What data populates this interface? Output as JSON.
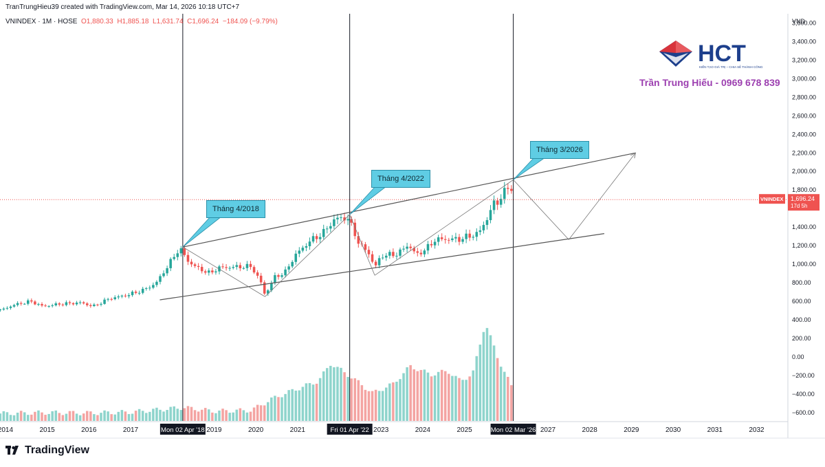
{
  "header": {
    "created_by": "TranTrungHieu39 created with TradingView.com, Mar 14, 2026 10:18 UTC+7"
  },
  "symbol": {
    "name": "VNINDEX · 1M · HOSE",
    "open": "O1,880.33",
    "high": "H1,885.18",
    "low": "L1,631.74",
    "close": "C1,696.24",
    "change": "−184.09 (−9.79%)"
  },
  "branding": {
    "logo_text": "HCT",
    "logo_tagline": "KIẾN TẠO GIÁ TRỊ – CHIA SẺ THÀNH CÔNG",
    "author": "Trần Trung Hiếu - 0969 678 839",
    "footer_brand": "TradingView"
  },
  "price_tag": {
    "label": "VNINDEX",
    "price": "1,696.24",
    "countdown": "17d 5h"
  },
  "annotations": [
    {
      "text": "Tháng 4/2018"
    },
    {
      "text": "Tháng 4/2022"
    },
    {
      "text": "Tháng 3/2026"
    }
  ],
  "colors": {
    "up": "#26a69a",
    "down": "#ef5350",
    "volume_up": "#8ed4cc",
    "volume_down": "#f4a4a2",
    "annotation": "#5fcde4",
    "author_text": "#9c3fb0",
    "logo_red": "#d8343c",
    "logo_blue": "#1d3f8c"
  },
  "chart_data": {
    "type": "candlestick",
    "interval": "1M",
    "unit": "VND",
    "y_axis": {
      "ticks": [
        3600,
        3400,
        3200,
        3000,
        2800,
        2600,
        2400,
        2200,
        2000,
        1800,
        1400,
        1200,
        1000,
        800,
        600,
        400,
        200,
        0,
        -200,
        -400,
        -600
      ],
      "tick_labels": [
        "3,600.00",
        "3,400.00",
        "3,200.00",
        "3,000.00",
        "2,800.00",
        "2,600.00",
        "2,400.00",
        "2,200.00",
        "2,000.00",
        "1,800.00",
        "1,400.00",
        "1,200.00",
        "1,000.00",
        "800.00",
        "600.00",
        "400.00",
        "200.00",
        "0.00",
        "−200.00",
        "−400.00",
        "−600.00"
      ],
      "range": [
        -690,
        3700
      ]
    },
    "x_axis": {
      "ticks": [
        {
          "label": "2014",
          "t": 2014.0
        },
        {
          "label": "2015",
          "t": 2015.0
        },
        {
          "label": "2016",
          "t": 2016.0
        },
        {
          "label": "2017",
          "t": 2017.0
        },
        {
          "label": "2019",
          "t": 2019.0
        },
        {
          "label": "2020",
          "t": 2020.0
        },
        {
          "label": "2021",
          "t": 2021.0
        },
        {
          "label": "2023",
          "t": 2023.0
        },
        {
          "label": "2024",
          "t": 2024.0
        },
        {
          "label": "2025",
          "t": 2025.0
        },
        {
          "label": "2027",
          "t": 2027.0
        },
        {
          "label": "2028",
          "t": 2028.0
        },
        {
          "label": "2029",
          "t": 2029.0
        },
        {
          "label": "2030",
          "t": 2030.0
        },
        {
          "label": "2031",
          "t": 2031.0
        },
        {
          "label": "2032",
          "t": 2032.0
        }
      ],
      "marked_dates": [
        {
          "label": "Mon 02 Apr '18",
          "t": 2018.25
        },
        {
          "label": "Fri 01 Apr '22",
          "t": 2022.25
        },
        {
          "label": "Mon 02 Mar '26",
          "t": 2026.17
        }
      ],
      "range": [
        2013.87,
        2032.75
      ]
    },
    "price_anchors": [
      {
        "t": 2013.9,
        "close": 505
      },
      {
        "t": 2014.2,
        "close": 560
      },
      {
        "t": 2014.6,
        "close": 600
      },
      {
        "t": 2014.9,
        "close": 545
      },
      {
        "t": 2015.3,
        "close": 570
      },
      {
        "t": 2015.8,
        "close": 585
      },
      {
        "t": 2016.1,
        "close": 545
      },
      {
        "t": 2016.5,
        "close": 630
      },
      {
        "t": 2016.9,
        "close": 665
      },
      {
        "t": 2017.3,
        "close": 720
      },
      {
        "t": 2017.6,
        "close": 790
      },
      {
        "t": 2017.9,
        "close": 985
      },
      {
        "t": 2018.17,
        "close": 1175
      },
      {
        "t": 2018.4,
        "close": 1020
      },
      {
        "t": 2018.6,
        "close": 960
      },
      {
        "t": 2018.9,
        "close": 900
      },
      {
        "t": 2019.1,
        "close": 960
      },
      {
        "t": 2019.5,
        "close": 970
      },
      {
        "t": 2019.9,
        "close": 975
      },
      {
        "t": 2020.15,
        "close": 780
      },
      {
        "t": 2020.22,
        "close": 665
      },
      {
        "t": 2020.45,
        "close": 860
      },
      {
        "t": 2020.7,
        "close": 910
      },
      {
        "t": 2020.95,
        "close": 1100
      },
      {
        "t": 2021.3,
        "close": 1250
      },
      {
        "t": 2021.6,
        "close": 1330
      },
      {
        "t": 2021.9,
        "close": 1490
      },
      {
        "t": 2022.2,
        "close": 1500
      },
      {
        "t": 2022.5,
        "close": 1200
      },
      {
        "t": 2022.7,
        "close": 1130
      },
      {
        "t": 2022.85,
        "close": 960
      },
      {
        "t": 2023.0,
        "close": 1090
      },
      {
        "t": 2023.4,
        "close": 1110
      },
      {
        "t": 2023.65,
        "close": 1210
      },
      {
        "t": 2023.85,
        "close": 1100
      },
      {
        "t": 2024.1,
        "close": 1170
      },
      {
        "t": 2024.3,
        "close": 1265
      },
      {
        "t": 2024.6,
        "close": 1270
      },
      {
        "t": 2024.9,
        "close": 1270
      },
      {
        "t": 2025.1,
        "close": 1300
      },
      {
        "t": 2025.25,
        "close": 1320
      },
      {
        "t": 2025.35,
        "close": 1340
      },
      {
        "t": 2025.55,
        "close": 1500
      },
      {
        "t": 2025.7,
        "close": 1650
      },
      {
        "t": 2025.85,
        "close": 1700
      },
      {
        "t": 2026.0,
        "close": 1800
      },
      {
        "t": 2026.1,
        "close": 1880
      },
      {
        "t": 2026.17,
        "close": 1696.24
      }
    ],
    "volume_anchors": [
      {
        "t": 2013.9,
        "v": -610
      },
      {
        "t": 2015.0,
        "v": -600
      },
      {
        "t": 2016.0,
        "v": -605
      },
      {
        "t": 2017.0,
        "v": -595
      },
      {
        "t": 2017.9,
        "v": -560
      },
      {
        "t": 2018.25,
        "v": -545
      },
      {
        "t": 2019.0,
        "v": -585
      },
      {
        "t": 2019.9,
        "v": -575
      },
      {
        "t": 2020.4,
        "v": -450
      },
      {
        "t": 2020.9,
        "v": -360
      },
      {
        "t": 2021.5,
        "v": -260
      },
      {
        "t": 2021.8,
        "v": -70
      },
      {
        "t": 2022.3,
        "v": -220
      },
      {
        "t": 2022.8,
        "v": -390
      },
      {
        "t": 2023.3,
        "v": -290
      },
      {
        "t": 2023.7,
        "v": -100
      },
      {
        "t": 2024.2,
        "v": -190
      },
      {
        "t": 2024.6,
        "v": -150
      },
      {
        "t": 2024.9,
        "v": -260
      },
      {
        "t": 2025.2,
        "v": -180
      },
      {
        "t": 2025.5,
        "v": 370
      },
      {
        "t": 2025.8,
        "v": -10
      },
      {
        "t": 2026.0,
        "v": -200
      },
      {
        "t": 2026.17,
        "v": -360
      }
    ],
    "price_level_marker": 1696.24,
    "trendlines": [
      {
        "name": "channel-top",
        "p1": {
          "t": 2018.25,
          "price": 1185
        },
        "p2": {
          "t": 2029.1,
          "price": 2200
        }
      },
      {
        "name": "channel-bottom",
        "p1": {
          "t": 2017.7,
          "price": 615
        },
        "p2": {
          "t": 2028.35,
          "price": 1330
        }
      },
      {
        "name": "wave-a",
        "points": [
          {
            "t": 2018.25,
            "price": 1185
          },
          {
            "t": 2020.22,
            "price": 650
          }
        ]
      },
      {
        "name": "wave-b",
        "points": [
          {
            "t": 2020.22,
            "price": 650
          },
          {
            "t": 2022.25,
            "price": 1535
          }
        ]
      },
      {
        "name": "wave-c",
        "points": [
          {
            "t": 2022.25,
            "price": 1535
          },
          {
            "t": 2022.85,
            "price": 880
          }
        ]
      },
      {
        "name": "wave-d",
        "points": [
          {
            "t": 2022.85,
            "price": 880
          },
          {
            "t": 2026.17,
            "price": 1910
          }
        ]
      },
      {
        "name": "projection",
        "points": [
          {
            "t": 2026.17,
            "price": 1910
          },
          {
            "t": 2027.5,
            "price": 1265
          },
          {
            "t": 2029.1,
            "price": 2200
          }
        ]
      }
    ]
  }
}
